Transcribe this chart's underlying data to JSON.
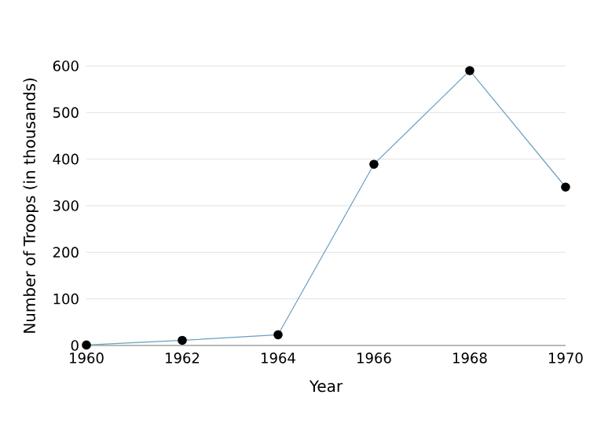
{
  "chart_data": {
    "type": "line",
    "xlabel": "Year",
    "ylabel": "Number of Troops (in thousands)",
    "x": [
      1960,
      1962,
      1964,
      1966,
      1968,
      1970
    ],
    "series": [
      {
        "color": "#6a9fc0",
        "values": [
          1,
          11,
          23,
          389,
          590,
          340
        ]
      }
    ],
    "xlim": [
      1960,
      1970
    ],
    "ylim": [
      0,
      600
    ],
    "xticks": [
      1960,
      1962,
      1964,
      1966,
      1968,
      1970
    ],
    "yticks": [
      0,
      100,
      200,
      300,
      400,
      500,
      600
    ],
    "grid": "y",
    "marker": "circle",
    "line_style": "solid"
  }
}
